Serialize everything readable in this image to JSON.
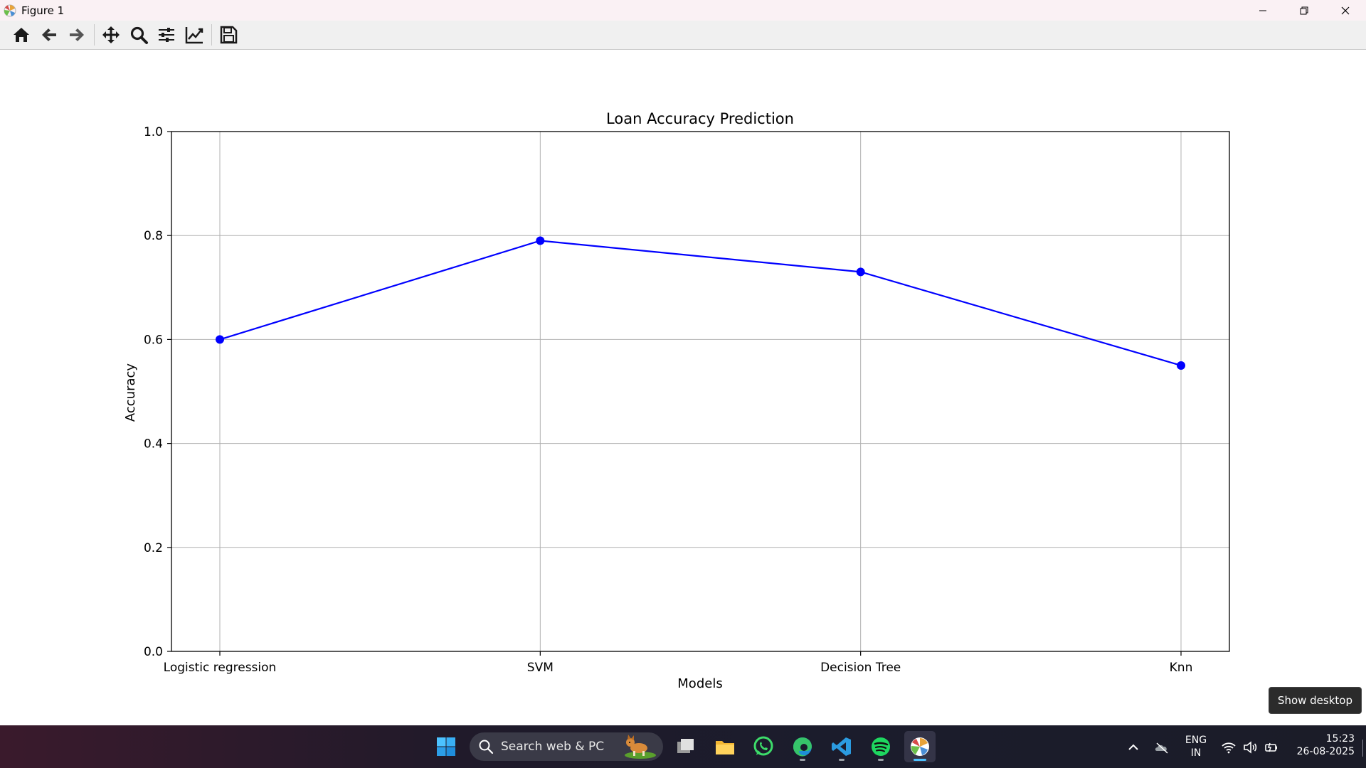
{
  "window": {
    "title": "Figure 1",
    "icon": "matplotlib-icon",
    "controls": [
      "minimize-icon",
      "restore-icon",
      "close-icon"
    ]
  },
  "toolbar": {
    "buttons": [
      {
        "name": "home",
        "icon": "home-icon"
      },
      {
        "name": "back",
        "icon": "arrow-left-icon"
      },
      {
        "name": "forward",
        "icon": "arrow-right-icon"
      },
      {
        "name": "pan",
        "icon": "move-icon"
      },
      {
        "name": "zoom",
        "icon": "zoom-icon"
      },
      {
        "name": "subplots",
        "icon": "sliders-icon"
      },
      {
        "name": "edit-axes",
        "icon": "chart-line-icon"
      },
      {
        "name": "save",
        "icon": "save-icon"
      }
    ]
  },
  "chart_data": {
    "type": "line",
    "title": "Loan Accuracy Prediction",
    "xlabel": "Models",
    "ylabel": "Accuracy",
    "categories": [
      "Logistic regression",
      "SVM",
      "Decision Tree",
      "Knn"
    ],
    "values": [
      0.6,
      0.79,
      0.73,
      0.55
    ],
    "ylim": [
      0.0,
      1.0
    ],
    "yticks": [
      0.0,
      0.2,
      0.4,
      0.6,
      0.8,
      1.0
    ],
    "ytick_labels": [
      "0.0",
      "0.2",
      "0.4",
      "0.6",
      "0.8",
      "1.0"
    ],
    "grid": true,
    "marker": "circle",
    "line_color": "#0000ff",
    "grid_color": "#b0b0b0"
  },
  "tooltip": {
    "text": "Show desktop"
  },
  "taskbar": {
    "search_placeholder": "Search web & PC",
    "apps": [
      "windows-start-icon",
      "task-view-icon",
      "file-explorer-icon",
      "whatsapp-icon",
      "edge-icon",
      "vscode-icon",
      "spotify-icon",
      "matplotlib-icon"
    ],
    "tray": {
      "language_line1": "ENG",
      "language_line2": "IN",
      "time": "15:23",
      "date": "26-08-2025"
    }
  },
  "colors": {
    "titlebar_bg": "#faf1f4",
    "toolbar_bg": "#f0f0f0",
    "series_line": "#0000ff"
  }
}
